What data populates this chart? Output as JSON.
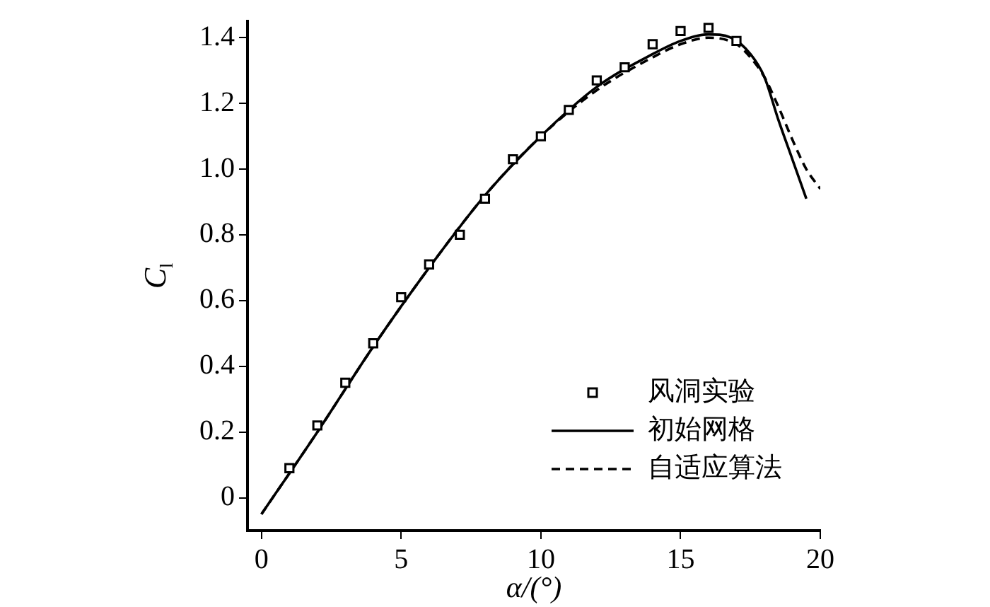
{
  "chart_data": {
    "type": "line",
    "xlabel": "α/(°)",
    "ylabel": "C$_{l}$",
    "xlim": [
      -0.5,
      20
    ],
    "xticks": [
      0,
      5,
      10,
      15,
      20
    ],
    "ylim": [
      -0.1,
      1.45
    ],
    "yticks": [
      0,
      0.2,
      0.4,
      0.6,
      0.8,
      {
        "value": 1,
        "label": "1.0"
      },
      1.2,
      1.4
    ],
    "grid": false,
    "legend": "bottom right",
    "series": [
      {
        "name": "风洞实验",
        "type": "scatter",
        "marker": "square",
        "color": "#000000",
        "x": [
          1,
          2,
          3,
          4,
          5,
          6,
          7.1,
          8,
          9,
          10,
          11,
          12,
          13,
          14,
          15,
          16,
          17
        ],
        "values": [
          0.09,
          0.22,
          0.35,
          0.47,
          0.61,
          0.71,
          0.8,
          0.91,
          1.03,
          1.1,
          1.18,
          1.27,
          1.31,
          1.38,
          1.42,
          1.43,
          1.39
        ]
      },
      {
        "name": "初始网格",
        "type": "line",
        "line_style": "solid",
        "color": "#000000",
        "x": [
          0,
          2,
          4,
          6,
          8,
          10,
          12,
          14,
          15,
          16,
          16.8,
          17.5,
          18,
          18.5,
          19,
          19.5
        ],
        "values": [
          -0.05,
          0.2,
          0.46,
          0.7,
          0.92,
          1.1,
          1.25,
          1.35,
          1.39,
          1.41,
          1.4,
          1.35,
          1.28,
          1.15,
          1.03,
          0.91
        ]
      },
      {
        "name": "自适应算法",
        "type": "line",
        "line_style": "dashed",
        "color": "#000000",
        "x": [
          0,
          2,
          4,
          6,
          8,
          10,
          12,
          14,
          15,
          16,
          17,
          17.5,
          18,
          18.5,
          19,
          19.5,
          20
        ],
        "values": [
          -0.05,
          0.2,
          0.46,
          0.7,
          0.92,
          1.1,
          1.24,
          1.34,
          1.38,
          1.4,
          1.38,
          1.34,
          1.28,
          1.19,
          1.09,
          1.0,
          0.94
        ]
      }
    ]
  }
}
